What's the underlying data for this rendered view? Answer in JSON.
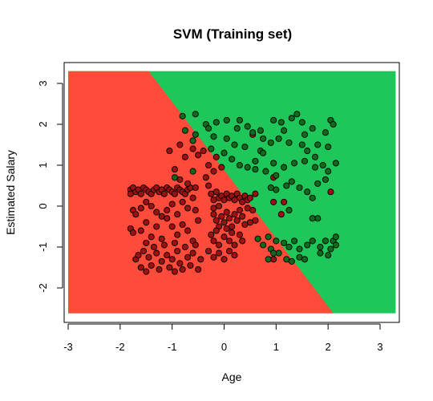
{
  "chart_data": {
    "type": "scatter",
    "title": "SVM (Training set)",
    "xlabel": "Age",
    "ylabel": "Estimated Salary",
    "xlim": [
      -3,
      3.3
    ],
    "ylim": [
      -2.62,
      3.3
    ],
    "xticks": [
      "-3",
      "-2",
      "-1",
      "0",
      "1",
      "2",
      "3"
    ],
    "yticks": [
      "-2",
      "-1",
      "0",
      "1",
      "2",
      "3"
    ],
    "regions": {
      "class0_color": "#FF4B3A",
      "class1_color": "#1FC65A",
      "boundary": [
        [
          -1.45,
          3.27
        ],
        [
          2.1,
          -2.6
        ]
      ]
    },
    "series": [
      {
        "color": "#9B1111",
        "points": [
          [
            -1.8,
            0.4
          ],
          [
            -1.8,
            0.3
          ],
          [
            -1.75,
            0.45
          ],
          [
            -1.7,
            0.35
          ],
          [
            -1.65,
            0.4
          ],
          [
            -1.6,
            0.3
          ],
          [
            -1.55,
            0.45
          ],
          [
            -1.5,
            0.4
          ],
          [
            -1.45,
            0.35
          ],
          [
            -1.4,
            0.3
          ],
          [
            -1.35,
            0.4
          ],
          [
            -1.3,
            0.45
          ],
          [
            -1.25,
            0.35
          ],
          [
            -1.2,
            0.4
          ],
          [
            -1.15,
            0.3
          ],
          [
            -1.1,
            0.45
          ],
          [
            -1.05,
            0.4
          ],
          [
            -1.0,
            0.35
          ],
          [
            -0.95,
            0.3
          ],
          [
            -0.9,
            0.45
          ],
          [
            -0.85,
            0.4
          ],
          [
            -0.8,
            0.35
          ],
          [
            -0.75,
            0.3
          ],
          [
            -0.7,
            0.4
          ],
          [
            -0.65,
            0.45
          ],
          [
            -1.8,
            -0.55
          ],
          [
            -1.75,
            -0.1
          ],
          [
            -1.7,
            -0.2
          ],
          [
            -1.6,
            -0.05
          ],
          [
            -1.5,
            0.1
          ],
          [
            -1.4,
            0.0
          ],
          [
            -1.3,
            -0.15
          ],
          [
            -1.2,
            -0.25
          ],
          [
            -1.1,
            -0.1
          ],
          [
            -1.0,
            0.05
          ],
          [
            -0.9,
            -0.2
          ],
          [
            -0.8,
            0.1
          ],
          [
            -0.7,
            -0.05
          ],
          [
            -0.6,
            0.2
          ],
          [
            -0.55,
            -0.1
          ],
          [
            -1.75,
            -0.65
          ],
          [
            -1.6,
            -0.6
          ],
          [
            -1.5,
            -0.4
          ],
          [
            -1.4,
            -0.75
          ],
          [
            -1.3,
            -0.5
          ],
          [
            -1.2,
            -0.8
          ],
          [
            -1.1,
            -0.3
          ],
          [
            -1.0,
            -0.5
          ],
          [
            -0.9,
            -0.7
          ],
          [
            -0.8,
            -0.45
          ],
          [
            -0.7,
            -0.6
          ],
          [
            -0.6,
            -0.85
          ],
          [
            -0.5,
            -0.35
          ],
          [
            -1.7,
            -1.3
          ],
          [
            -1.65,
            -1.2
          ],
          [
            -1.6,
            -1.5
          ],
          [
            -1.55,
            -1.1
          ],
          [
            -1.5,
            -1.6
          ],
          [
            -1.45,
            -1.25
          ],
          [
            -1.4,
            -1.45
          ],
          [
            -1.3,
            -1.15
          ],
          [
            -1.25,
            -1.55
          ],
          [
            -1.2,
            -1.35
          ],
          [
            -1.1,
            -1.2
          ],
          [
            -1.05,
            -1.5
          ],
          [
            -1.0,
            -1.3
          ],
          [
            -0.95,
            -1.6
          ],
          [
            -0.9,
            -1.1
          ],
          [
            -0.85,
            -1.4
          ],
          [
            -0.8,
            -1.55
          ],
          [
            -0.7,
            -1.25
          ],
          [
            -0.65,
            -1.45
          ],
          [
            -0.6,
            -1.15
          ],
          [
            -0.5,
            -1.55
          ],
          [
            -0.45,
            -1.3
          ],
          [
            -1.5,
            -0.9
          ],
          [
            -1.35,
            -1.0
          ],
          [
            -1.15,
            -0.95
          ],
          [
            -0.95,
            -0.9
          ],
          [
            -0.75,
            -1.0
          ],
          [
            -0.55,
            -0.95
          ],
          [
            -0.35,
            0.7
          ],
          [
            -0.3,
            0.5
          ],
          [
            -0.25,
            0.3
          ],
          [
            -0.2,
            0.15
          ],
          [
            -0.2,
            -0.05
          ],
          [
            -0.15,
            0.35
          ],
          [
            -0.1,
            0.2
          ],
          [
            -0.1,
            0.0
          ],
          [
            -0.05,
            0.25
          ],
          [
            0.0,
            0.15
          ],
          [
            0.05,
            0.3
          ],
          [
            0.1,
            0.2
          ],
          [
            0.15,
            0.25
          ],
          [
            0.2,
            0.15
          ],
          [
            0.25,
            0.3
          ],
          [
            0.3,
            0.2
          ],
          [
            0.35,
            0.1
          ],
          [
            0.4,
            0.25
          ],
          [
            0.45,
            0.15
          ],
          [
            0.5,
            0.2
          ],
          [
            -0.2,
            -0.2
          ],
          [
            -0.15,
            -0.35
          ],
          [
            -0.1,
            -0.5
          ],
          [
            -0.05,
            -0.25
          ],
          [
            0.0,
            -0.4
          ],
          [
            0.05,
            -0.15
          ],
          [
            0.1,
            -0.3
          ],
          [
            0.15,
            -0.5
          ],
          [
            0.2,
            -0.2
          ],
          [
            0.25,
            -0.35
          ],
          [
            0.3,
            -0.1
          ],
          [
            0.35,
            -0.25
          ],
          [
            0.4,
            -0.45
          ],
          [
            0.45,
            -0.05
          ],
          [
            -0.25,
            -0.7
          ],
          [
            -0.2,
            -0.85
          ],
          [
            -0.15,
            -0.6
          ],
          [
            -0.1,
            -0.95
          ],
          [
            0.0,
            -0.75
          ],
          [
            0.05,
            -0.55
          ],
          [
            0.1,
            -0.85
          ],
          [
            0.15,
            -0.65
          ],
          [
            0.2,
            -0.95
          ],
          [
            0.3,
            -0.7
          ],
          [
            0.35,
            -0.85
          ],
          [
            -0.3,
            -1.1
          ],
          [
            -0.2,
            -1.25
          ],
          [
            -0.1,
            -1.15
          ],
          [
            0.0,
            -1.3
          ],
          [
            0.1,
            -1.1
          ],
          [
            0.2,
            -1.2
          ],
          [
            -1.05,
            1.35
          ],
          [
            -0.85,
            1.5
          ],
          [
            -0.75,
            1.2
          ],
          [
            -0.6,
            1.4
          ],
          [
            -0.5,
            1.25
          ],
          [
            -0.4,
            1.35
          ],
          [
            -0.3,
            1.0
          ],
          [
            -0.2,
            0.85
          ],
          [
            -0.15,
            1.2
          ],
          [
            -0.05,
            0.95
          ],
          [
            -0.95,
            0.9
          ],
          [
            -0.85,
            0.65
          ],
          [
            -0.7,
            0.55
          ],
          [
            -0.55,
            0.45
          ],
          [
            0.5,
            -0.4
          ],
          [
            0.55,
            -0.1
          ],
          [
            0.6,
            0.3
          ],
          [
            0.6,
            -0.35
          ],
          [
            0.55,
            1.75
          ],
          [
            0.95,
            0.7
          ],
          [
            0.95,
            0.1
          ],
          [
            1.1,
            -0.2
          ],
          [
            1.15,
            0.1
          ],
          [
            2.05,
            0.35
          ],
          [
            0.95,
            -1.3
          ]
        ]
      },
      {
        "color": "#0E6B1A",
        "points": [
          [
            -0.8,
            2.2
          ],
          [
            -0.55,
            2.25
          ],
          [
            -0.35,
            2.0
          ],
          [
            -0.3,
            1.9
          ],
          [
            -0.15,
            2.05
          ],
          [
            0.05,
            2.1
          ],
          [
            0.25,
            1.9
          ],
          [
            0.3,
            2.1
          ],
          [
            0.45,
            1.95
          ],
          [
            0.55,
            1.8
          ],
          [
            0.7,
            1.85
          ],
          [
            0.75,
            1.65
          ],
          [
            0.95,
            2.1
          ],
          [
            1.1,
            2.05
          ],
          [
            1.15,
            1.85
          ],
          [
            1.3,
            2.15
          ],
          [
            1.4,
            2.25
          ],
          [
            1.5,
            2.05
          ],
          [
            1.55,
            1.75
          ],
          [
            1.7,
            1.9
          ],
          [
            1.8,
            1.5
          ],
          [
            1.95,
            1.8
          ],
          [
            2.05,
            2.1
          ],
          [
            2.1,
            2.0
          ],
          [
            -0.75,
            1.85
          ],
          [
            -0.55,
            1.75
          ],
          [
            -0.2,
            1.7
          ],
          [
            0.05,
            1.65
          ],
          [
            0.2,
            1.5
          ],
          [
            0.4,
            1.45
          ],
          [
            0.7,
            1.35
          ],
          [
            0.9,
            1.55
          ],
          [
            1.05,
            1.65
          ],
          [
            1.25,
            1.55
          ],
          [
            1.5,
            1.5
          ],
          [
            1.6,
            1.35
          ],
          [
            1.75,
            1.2
          ],
          [
            2.0,
            1.45
          ],
          [
            -0.6,
            1.6
          ],
          [
            -0.25,
            1.4
          ],
          [
            0.0,
            1.3
          ],
          [
            0.15,
            1.15
          ],
          [
            0.3,
            1.0
          ],
          [
            0.45,
            0.95
          ],
          [
            0.6,
            1.1
          ],
          [
            0.75,
            1.3
          ],
          [
            0.95,
            1.05
          ],
          [
            1.15,
            0.95
          ],
          [
            1.35,
            1.05
          ],
          [
            1.55,
            1.1
          ],
          [
            1.75,
            0.95
          ],
          [
            1.9,
            1.0
          ],
          [
            2.15,
            1.05
          ],
          [
            2.0,
            0.85
          ],
          [
            -0.95,
            0.7
          ],
          [
            -0.6,
            0.85
          ],
          [
            0.6,
            0.9
          ],
          [
            0.8,
            0.85
          ],
          [
            1.0,
            0.75
          ],
          [
            1.2,
            0.5
          ],
          [
            1.3,
            0.6
          ],
          [
            1.45,
            0.45
          ],
          [
            1.6,
            0.35
          ],
          [
            1.8,
            0.55
          ],
          [
            1.95,
            0.65
          ],
          [
            1.7,
            0.2
          ],
          [
            1.8,
            -0.3
          ],
          [
            1.7,
            -0.3
          ],
          [
            1.25,
            -0.1
          ],
          [
            1.0,
            0.4
          ],
          [
            0.9,
            0.45
          ],
          [
            0.65,
            -0.8
          ],
          [
            0.75,
            -0.95
          ],
          [
            0.85,
            -0.75
          ],
          [
            0.9,
            -1.05
          ],
          [
            1.0,
            -0.85
          ],
          [
            1.05,
            -1.15
          ],
          [
            1.15,
            -0.9
          ],
          [
            1.25,
            -1.0
          ],
          [
            1.35,
            -0.85
          ],
          [
            1.45,
            -1.05
          ],
          [
            1.6,
            -0.95
          ],
          [
            1.7,
            -0.85
          ],
          [
            1.85,
            -1.0
          ],
          [
            1.95,
            -0.85
          ],
          [
            2.05,
            -1.05
          ],
          [
            2.1,
            -0.85
          ],
          [
            2.15,
            -0.75
          ],
          [
            2.15,
            -0.95
          ],
          [
            1.2,
            -1.3
          ],
          [
            1.3,
            -1.35
          ],
          [
            1.45,
            -1.25
          ],
          [
            1.55,
            -1.3
          ],
          [
            1.85,
            -1.15
          ],
          [
            2.0,
            -1.2
          ],
          [
            0.85,
            -1.3
          ],
          [
            0.95,
            -1.15
          ]
        ]
      }
    ]
  }
}
